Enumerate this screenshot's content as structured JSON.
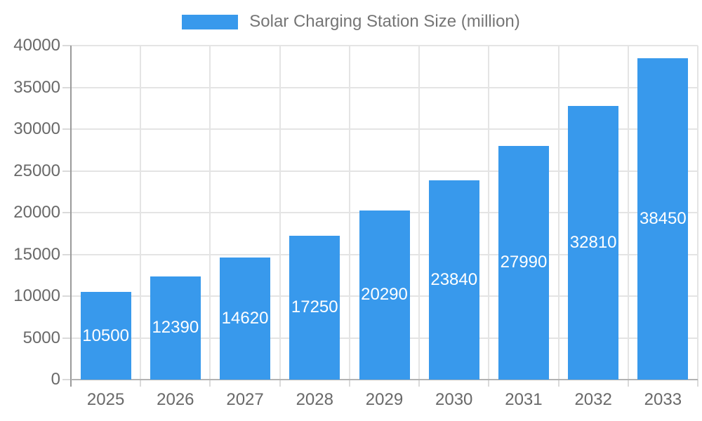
{
  "chart_data": {
    "type": "bar",
    "title": "Solar Charging Station Size (million)",
    "categories": [
      "2025",
      "2026",
      "2027",
      "2028",
      "2029",
      "2030",
      "2031",
      "2032",
      "2033"
    ],
    "values": [
      10500,
      12390,
      14620,
      17250,
      20290,
      23840,
      27990,
      32810,
      38450
    ],
    "xlabel": "",
    "ylabel": "",
    "ylim": [
      0,
      40000
    ],
    "ytick_step": 5000,
    "ytick_labels": [
      "0",
      "5000",
      "10000",
      "15000",
      "20000",
      "25000",
      "30000",
      "35000",
      "40000"
    ],
    "grid": true,
    "legend_position": "top",
    "value_labels": "inside-center",
    "bar_color": "#3899ec",
    "label_text_color": "#ffffff",
    "axis_text_color": "#696969",
    "legend_text_color": "#757575",
    "gridline_color": "#e4e4e4"
  }
}
